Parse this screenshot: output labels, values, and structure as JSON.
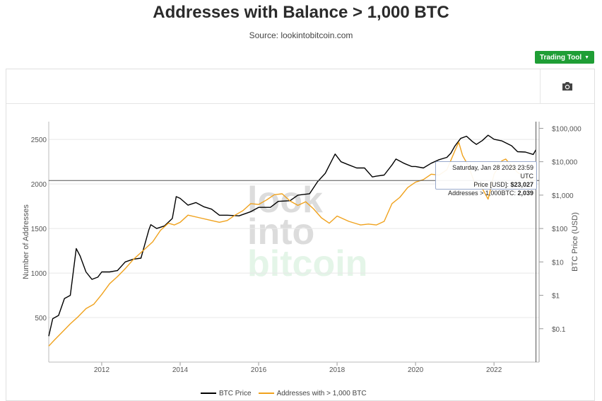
{
  "page": {
    "title": "Addresses with Balance > 1,000 BTC",
    "subtitle": "Source: lookintobitcoin.com",
    "trading_tool_label": "Trading Tool",
    "camera_icon": "camera-icon"
  },
  "watermark": [
    "look",
    "into",
    "bitcoin"
  ],
  "colors": {
    "btc_price": "#000000",
    "addresses": "#f0a21d",
    "accent": "#1f9e35",
    "watermark_gray": "#dcdcdc",
    "watermark_green": "#e4f5e8"
  },
  "tooltip": {
    "date": "Saturday, Jan 28 2023 23:59 UTC",
    "price_label": "Price [USD]:",
    "price_value": "$23,027",
    "addr_label": "Addresses > 1,000BTC:",
    "addr_value": "2,039"
  },
  "chart_data": {
    "type": "line",
    "title": "Addresses with Balance > 1,000 BTC",
    "subtitle": "Source: lookintobitcoin.com",
    "xlabel": "",
    "ylabel_left": "Number of Addresses",
    "ylabel_right": "BTC Price (USD)",
    "xlim": [
      2010.65,
      2023.15
    ],
    "ylim_left": [
      0,
      2700
    ],
    "ylim_right_log10": [
      -2,
      5.2
    ],
    "x_ticks": [
      2012,
      2014,
      2016,
      2018,
      2020,
      2022
    ],
    "x_tick_labels": [
      "2012",
      "2014",
      "2016",
      "2018",
      "2020",
      "2022"
    ],
    "y_left_ticks": [
      500,
      1000,
      1500,
      2000,
      2500
    ],
    "y_left_tick_labels": [
      "500",
      "1000",
      "1500",
      "2000",
      "2500"
    ],
    "y_right_ticks_log10": [
      -1,
      0,
      1,
      2,
      3,
      4,
      5
    ],
    "y_right_tick_labels": [
      "$0.1",
      "$1",
      "$10",
      "$100",
      "$1,000",
      "$10,000",
      "$100,000"
    ],
    "right_scale": "log",
    "grid": "horizontal",
    "crosshair": {
      "x": 2023.07,
      "y_left": 2039
    },
    "legend_position": "bottom",
    "series": [
      {
        "name": "BTC Price",
        "axis": "right",
        "x": [
          2010.65,
          2010.75,
          2010.9,
          2011.05,
          2011.2,
          2011.35,
          2011.45,
          2011.6,
          2011.75,
          2011.9,
          2012.0,
          2012.2,
          2012.4,
          2012.6,
          2012.8,
          2013.0,
          2013.2,
          2013.25,
          2013.4,
          2013.6,
          2013.8,
          2013.9,
          2014.0,
          2014.2,
          2014.4,
          2014.6,
          2014.8,
          2015.0,
          2015.2,
          2015.5,
          2015.8,
          2016.0,
          2016.3,
          2016.5,
          2016.8,
          2017.0,
          2017.3,
          2017.5,
          2017.7,
          2017.85,
          2017.95,
          2018.1,
          2018.3,
          2018.5,
          2018.7,
          2018.9,
          2019.0,
          2019.2,
          2019.4,
          2019.5,
          2019.7,
          2019.9,
          2020.0,
          2020.2,
          2020.4,
          2020.6,
          2020.8,
          2020.9,
          2021.0,
          2021.15,
          2021.3,
          2021.45,
          2021.55,
          2021.7,
          2021.85,
          2022.0,
          2022.2,
          2022.45,
          2022.6,
          2022.8,
          2023.0,
          2023.07
        ],
        "y": [
          0.06,
          0.2,
          0.25,
          0.8,
          1.0,
          25,
          15,
          5,
          3,
          3.5,
          5,
          5,
          5.5,
          10,
          12,
          13,
          90,
          130,
          100,
          120,
          200,
          900,
          800,
          500,
          600,
          450,
          380,
          250,
          250,
          240,
          320,
          430,
          430,
          650,
          680,
          1000,
          1100,
          2500,
          4500,
          10000,
          17000,
          10000,
          8000,
          6500,
          6500,
          3500,
          3700,
          4000,
          8000,
          12000,
          9000,
          7200,
          7200,
          6500,
          9000,
          11500,
          13500,
          18000,
          29000,
          50000,
          58000,
          40000,
          33000,
          43000,
          62000,
          47000,
          42000,
          30000,
          20000,
          19500,
          16500,
          23027
        ]
      },
      {
        "name": "Addresses with > 1,000 BTC",
        "axis": "left",
        "x": [
          2010.65,
          2010.8,
          2011.0,
          2011.2,
          2011.4,
          2011.6,
          2011.8,
          2012.0,
          2012.2,
          2012.4,
          2012.6,
          2012.8,
          2013.0,
          2013.3,
          2013.5,
          2013.7,
          2013.85,
          2014.0,
          2014.2,
          2014.5,
          2014.8,
          2015.0,
          2015.2,
          2015.4,
          2015.6,
          2015.8,
          2016.0,
          2016.2,
          2016.4,
          2016.6,
          2016.8,
          2017.0,
          2017.2,
          2017.4,
          2017.6,
          2017.8,
          2018.0,
          2018.3,
          2018.6,
          2018.8,
          2019.0,
          2019.2,
          2019.4,
          2019.6,
          2019.8,
          2020.0,
          2020.2,
          2020.4,
          2020.6,
          2020.8,
          2021.0,
          2021.1,
          2021.2,
          2021.35,
          2021.5,
          2021.7,
          2021.85,
          2022.0,
          2022.1,
          2022.2,
          2022.3,
          2022.45,
          2022.6,
          2022.8,
          2023.0,
          2023.07
        ],
        "y": [
          180,
          250,
          340,
          430,
          510,
          600,
          650,
          760,
          880,
          960,
          1050,
          1150,
          1230,
          1350,
          1480,
          1560,
          1540,
          1570,
          1650,
          1620,
          1590,
          1570,
          1590,
          1650,
          1700,
          1780,
          1770,
          1820,
          1880,
          1890,
          1810,
          1760,
          1800,
          1720,
          1620,
          1560,
          1640,
          1580,
          1540,
          1550,
          1540,
          1580,
          1780,
          1850,
          1960,
          2020,
          2050,
          2110,
          2100,
          2160,
          2370,
          2470,
          2320,
          2200,
          2020,
          1950,
          1830,
          2110,
          2180,
          2260,
          2280,
          2200,
          2130,
          2070,
          2040,
          2039
        ]
      }
    ],
    "legend": [
      "BTC Price",
      "Addresses with > 1,000 BTC"
    ]
  }
}
